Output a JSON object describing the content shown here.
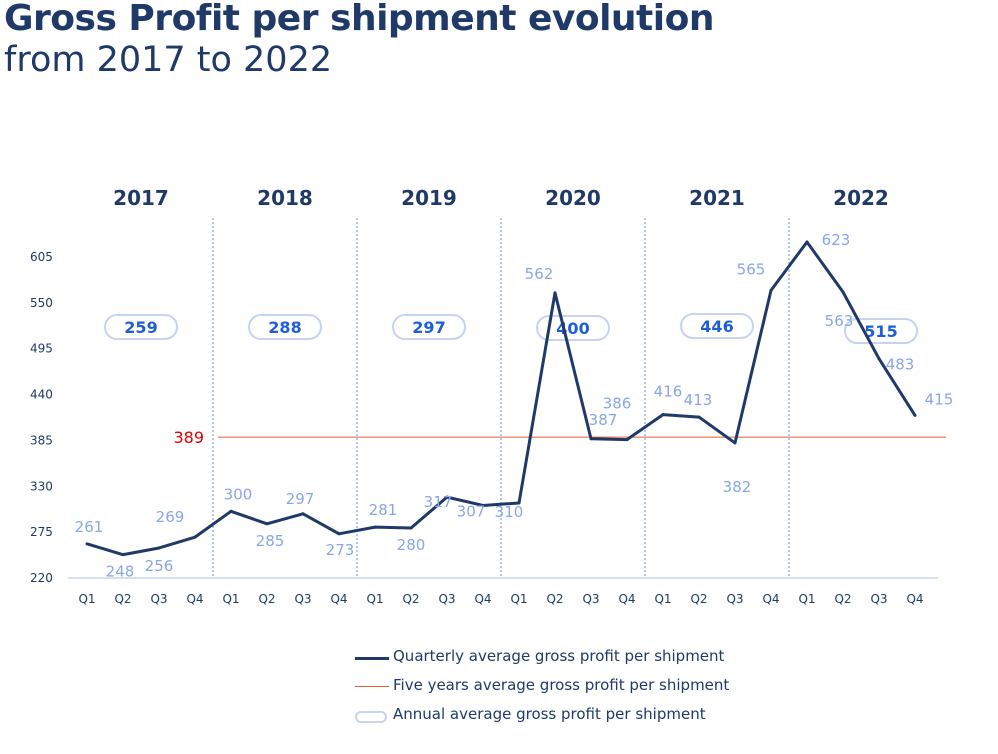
{
  "title": {
    "line1": "Gross Profit per shipment evolution",
    "line2": "from 2017 to 2022"
  },
  "chart_data": {
    "type": "line",
    "years": [
      "2017",
      "2018",
      "2019",
      "2020",
      "2021",
      "2022"
    ],
    "categories": [
      "Q1",
      "Q2",
      "Q3",
      "Q4",
      "Q1",
      "Q2",
      "Q3",
      "Q4",
      "Q1",
      "Q2",
      "Q3",
      "Q4",
      "Q1",
      "Q2",
      "Q3",
      "Q4",
      "Q1",
      "Q2",
      "Q3",
      "Q4",
      "Q1",
      "Q2",
      "Q3",
      "Q4"
    ],
    "series": [
      {
        "name": "Quarterly average gross profit per shipment",
        "values": [
          261,
          248,
          256,
          269,
          300,
          285,
          297,
          273,
          281,
          280,
          317,
          307,
          310,
          562,
          387,
          386,
          416,
          413,
          382,
          565,
          623,
          563,
          483,
          415
        ],
        "color": "#1f3a68"
      }
    ],
    "reference_line": {
      "name": "Five years average gross profit per shipment",
      "value": 389,
      "label": "389",
      "color": "#e06030"
    },
    "annual_averages": {
      "name": "Annual average gross profit per shipment",
      "labels": [
        "259",
        "288",
        "297",
        "400",
        "446",
        "515"
      ]
    },
    "y_ticks": [
      "220",
      "275",
      "330",
      "385",
      "440",
      "495",
      "550",
      "605"
    ],
    "ylim": [
      220,
      615
    ],
    "grid": false,
    "legend_position": "bottom",
    "colors": {
      "line": "#1f3a68",
      "data_label": "#8aa6e6",
      "annual_label": "#1f5fd6",
      "pill_border": "#c7d3f2",
      "reference": "#e06030",
      "reference_label": "#e00000",
      "separator": "#6b8fd8"
    }
  }
}
